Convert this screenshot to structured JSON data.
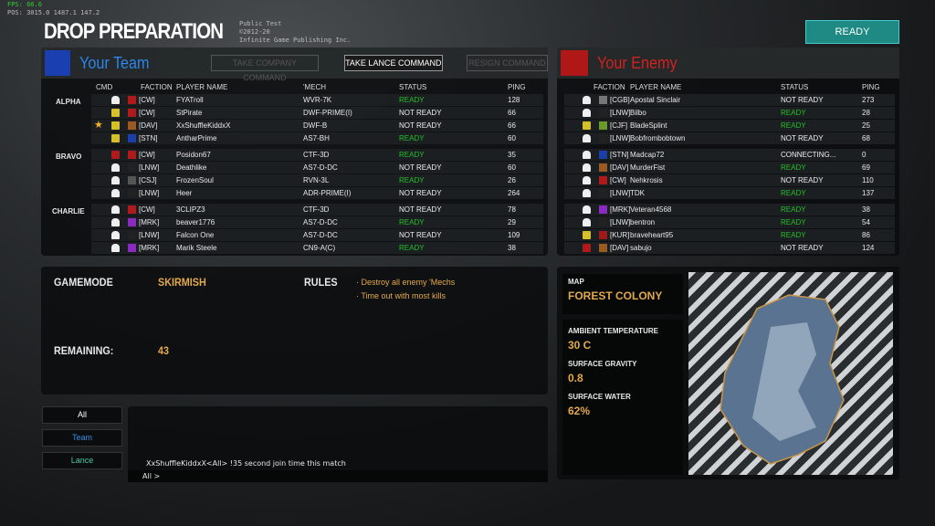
{
  "debug": {
    "fps": "FPS: 66.6",
    "pos": "POS: 3015.0  1487.1  147.2",
    "line1": "Public Test",
    "line2": "©2012-20",
    "line3": "Infinite Game Publishing Inc."
  },
  "title": "DROP PREPARATION",
  "ready_button": "READY",
  "colors": {
    "ready": "#22c02a",
    "accent": "#e3a94a",
    "team_blue": "#1e6fd9",
    "enemy_red": "#cc1a1a"
  },
  "your_team": {
    "label": "Your Team",
    "buttons": [
      "TAKE COMPANY COMMAND",
      "TAKE LANCE COMMAND",
      "RESIGN COMMAND"
    ],
    "columns": [
      "CMD",
      "FACTION",
      "PLAYER NAME",
      "'MECH",
      "STATUS",
      "PING"
    ],
    "lances": [
      {
        "name": "ALPHA",
        "players": [
          {
            "cmd": "player-icon",
            "faction": "[CW]",
            "name": "FYATroll",
            "mech": "WVR-7K",
            "status": "READY",
            "ping": "128"
          },
          {
            "cmd": "lance-command-icon",
            "faction": "[CW]",
            "name": "StPirate",
            "mech": "DWF-PRIME(I)",
            "status": "NOT READY",
            "ping": "66"
          },
          {
            "cmd": "lance-command-icon",
            "star": true,
            "faction": "[DAV]",
            "name": "XxShuffleKiddxX",
            "mech": "DWF-B",
            "status": "NOT READY",
            "ping": "66"
          },
          {
            "cmd": "lance-command-icon",
            "faction": "[STN]",
            "name": "AntharPrime",
            "mech": "AS7-BH",
            "status": "READY",
            "ping": "60"
          }
        ]
      },
      {
        "name": "BRAVO",
        "players": [
          {
            "cmd": "faction-icon",
            "faction": "[CW]",
            "name": "Posidon67",
            "mech": "CTF-3D",
            "status": "READY",
            "ping": "35"
          },
          {
            "cmd": "player-icon",
            "faction": "[LNW]",
            "name": "Deathlike",
            "mech": "AS7-D-DC",
            "status": "NOT READY",
            "ping": "60"
          },
          {
            "cmd": "player-icon",
            "faction": "[CSJ]",
            "name": "FrozenSoul",
            "mech": "RVN-3L",
            "status": "READY",
            "ping": "26"
          },
          {
            "cmd": "player-icon",
            "faction": "[LNW]",
            "name": "Heer",
            "mech": "ADR-PRIME(I)",
            "status": "NOT READY",
            "ping": "264"
          }
        ]
      },
      {
        "name": "CHARLIE",
        "players": [
          {
            "cmd": "player-icon",
            "faction": "[CW]",
            "name": "3CLIPZ3",
            "mech": "CTF-3D",
            "status": "NOT READY",
            "ping": "78"
          },
          {
            "cmd": "player-icon",
            "faction": "[MRK]",
            "name": "beaver1776",
            "mech": "AS7-D-DC",
            "status": "READY",
            "ping": "29"
          },
          {
            "cmd": "player-icon",
            "faction": "[LNW]",
            "name": "Falcon One",
            "mech": "AS7-D-DC",
            "status": "NOT READY",
            "ping": "109"
          },
          {
            "cmd": "player-icon",
            "faction": "[MRK]",
            "name": "Marik Steele",
            "mech": "CN9-A(C)",
            "status": "READY",
            "ping": "38"
          }
        ]
      }
    ]
  },
  "enemy": {
    "label": "Your Enemy",
    "columns": [
      "FACTION",
      "PLAYER NAME",
      "STATUS",
      "PING"
    ],
    "lances": [
      {
        "players": [
          {
            "cmd": "player-icon",
            "faction": "[CGB]",
            "name": "Apostal Sinclair",
            "status": "NOT READY",
            "ping": "273"
          },
          {
            "cmd": "player-icon",
            "faction": "[LNW]",
            "name": "Bilbo",
            "status": "READY",
            "ping": "28"
          },
          {
            "cmd": "lance-command-icon",
            "faction": "[CJF]",
            "name": "BladeSplint",
            "status": "READY",
            "ping": "25"
          },
          {
            "cmd": "player-icon",
            "faction": "[LNW]",
            "name": "Bobfrombobtown",
            "status": "NOT READY",
            "ping": "68"
          }
        ]
      },
      {
        "players": [
          {
            "cmd": "player-icon",
            "faction": "[STN]",
            "name": "Madcap72",
            "status": "CONNECTING...",
            "ping": "0"
          },
          {
            "cmd": "player-icon",
            "faction": "[DAV]",
            "name": "MurderFist",
            "status": "READY",
            "ping": "69"
          },
          {
            "cmd": "player-icon",
            "faction": "[CW]",
            "name": "Nehkrosis",
            "status": "NOT READY",
            "ping": "110"
          },
          {
            "cmd": "player-icon",
            "faction": "[LNW]",
            "name": "TDK",
            "status": "READY",
            "ping": "137"
          }
        ]
      },
      {
        "players": [
          {
            "cmd": "player-icon",
            "faction": "[MRK]",
            "name": "Veteran4568",
            "status": "READY",
            "ping": "38"
          },
          {
            "cmd": "player-icon",
            "faction": "[LNW]",
            "name": "bentron",
            "status": "READY",
            "ping": "54"
          },
          {
            "cmd": "lance-command-icon",
            "faction": "[KUR]",
            "name": "braveheart95",
            "status": "READY",
            "ping": "86"
          },
          {
            "cmd": "faction-icon",
            "faction": "[DAV]",
            "name": "sabujo",
            "status": "NOT READY",
            "ping": "124"
          }
        ]
      }
    ]
  },
  "match": {
    "gamemode_label": "GAMEMODE",
    "gamemode": "SKIRMISH",
    "rules_label": "RULES",
    "rules": [
      "· Destroy all enemy 'Mechs",
      "· Time out with most kills"
    ],
    "remaining_label": "REMAINING:",
    "remaining": "43"
  },
  "map": {
    "map_label": "MAP",
    "map_name": "FOREST COLONY",
    "temp_label": "AMBIENT TEMPERATURE",
    "temp": "30 C",
    "gravity_label": "SURFACE GRAVITY",
    "gravity": "0.8",
    "water_label": "SURFACE WATER",
    "water": "62%"
  },
  "chat": {
    "tabs": [
      "All",
      "Team",
      "Lance"
    ],
    "messages": [
      "XxShuffleKiddxX<All> !35 second join time this match"
    ],
    "prompt": "All >"
  }
}
